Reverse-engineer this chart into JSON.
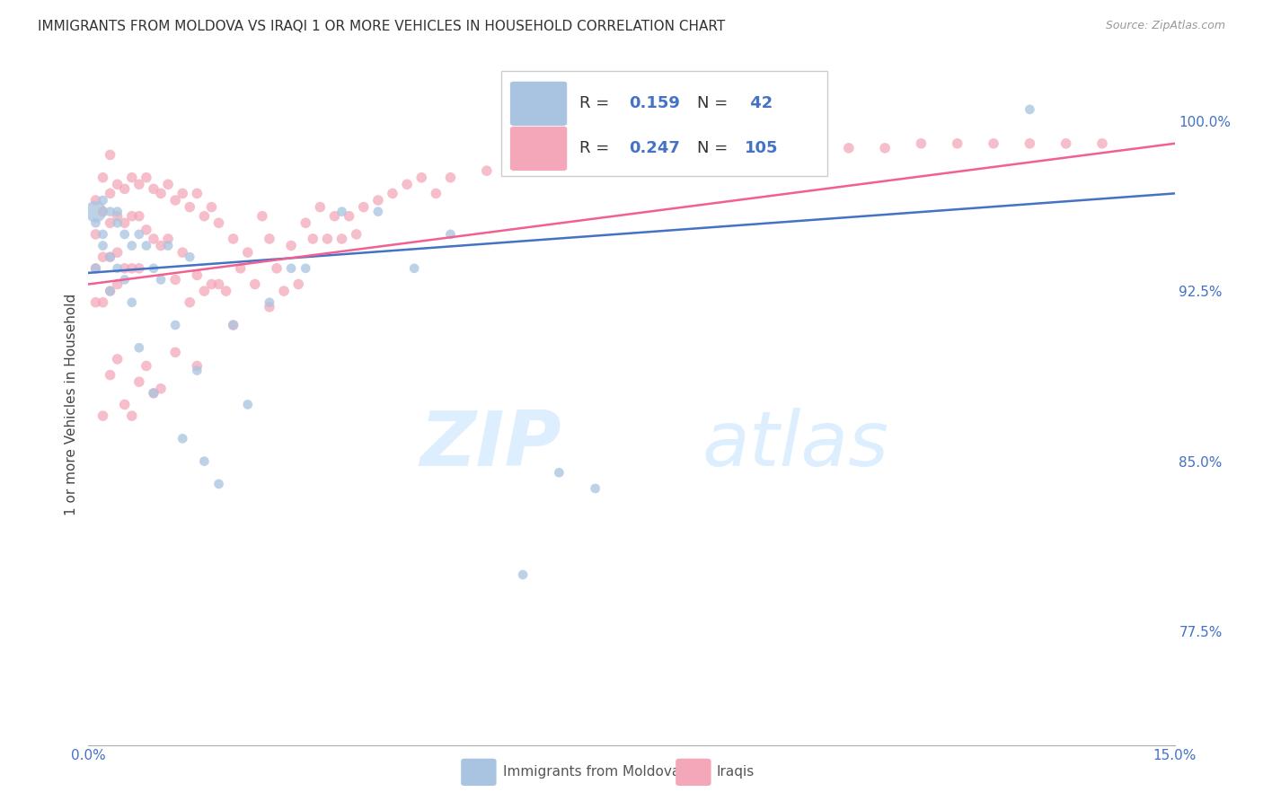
{
  "title": "IMMIGRANTS FROM MOLDOVA VS IRAQI 1 OR MORE VEHICLES IN HOUSEHOLD CORRELATION CHART",
  "source": "Source: ZipAtlas.com",
  "ylabel": "1 or more Vehicles in Household",
  "xlim": [
    0.0,
    0.15
  ],
  "ylim": [
    0.725,
    1.025
  ],
  "yticks_right": [
    0.775,
    0.85,
    0.925,
    1.0
  ],
  "yticklabels_right": [
    "77.5%",
    "85.0%",
    "92.5%",
    "100.0%"
  ],
  "moldova_color": "#a8c4e0",
  "iraqi_color": "#f4a7b9",
  "moldova_line_color": "#4472c4",
  "iraqi_line_color": "#f06090",
  "R_moldova": 0.159,
  "N_moldova": 42,
  "R_iraqi": 0.247,
  "N_iraqi": 105,
  "background_color": "#ffffff",
  "grid_color": "#cccccc",
  "watermark_color": "#ddeeff",
  "moldova_x": [
    0.001,
    0.001,
    0.002,
    0.002,
    0.003,
    0.003,
    0.003,
    0.004,
    0.004,
    0.005,
    0.005,
    0.006,
    0.006,
    0.007,
    0.007,
    0.008,
    0.009,
    0.009,
    0.01,
    0.011,
    0.012,
    0.013,
    0.014,
    0.015,
    0.016,
    0.018,
    0.02,
    0.022,
    0.025,
    0.028,
    0.03,
    0.035,
    0.04,
    0.045,
    0.05,
    0.06,
    0.065,
    0.07,
    0.13,
    0.001,
    0.002,
    0.004
  ],
  "moldova_y": [
    0.935,
    0.955,
    0.965,
    0.945,
    0.96,
    0.94,
    0.925,
    0.955,
    0.935,
    0.95,
    0.93,
    0.945,
    0.92,
    0.95,
    0.9,
    0.945,
    0.935,
    0.88,
    0.93,
    0.945,
    0.91,
    0.86,
    0.94,
    0.89,
    0.85,
    0.84,
    0.91,
    0.875,
    0.92,
    0.935,
    0.935,
    0.96,
    0.96,
    0.935,
    0.95,
    0.8,
    0.845,
    0.838,
    1.005,
    0.96,
    0.95,
    0.96
  ],
  "moldova_sizes": [
    60,
    60,
    60,
    60,
    60,
    60,
    60,
    60,
    60,
    60,
    60,
    60,
    60,
    60,
    60,
    60,
    60,
    60,
    60,
    60,
    60,
    60,
    60,
    60,
    60,
    60,
    60,
    60,
    60,
    60,
    60,
    60,
    60,
    60,
    60,
    60,
    60,
    60,
    60,
    300,
    60,
    60
  ],
  "iraqi_x": [
    0.001,
    0.001,
    0.001,
    0.001,
    0.002,
    0.002,
    0.002,
    0.002,
    0.003,
    0.003,
    0.003,
    0.003,
    0.003,
    0.004,
    0.004,
    0.004,
    0.004,
    0.005,
    0.005,
    0.005,
    0.006,
    0.006,
    0.006,
    0.007,
    0.007,
    0.007,
    0.008,
    0.008,
    0.009,
    0.009,
    0.01,
    0.01,
    0.011,
    0.011,
    0.012,
    0.012,
    0.013,
    0.013,
    0.014,
    0.014,
    0.015,
    0.015,
    0.016,
    0.016,
    0.017,
    0.017,
    0.018,
    0.018,
    0.019,
    0.02,
    0.021,
    0.022,
    0.023,
    0.024,
    0.025,
    0.026,
    0.027,
    0.028,
    0.029,
    0.03,
    0.031,
    0.032,
    0.033,
    0.034,
    0.035,
    0.036,
    0.037,
    0.038,
    0.04,
    0.042,
    0.044,
    0.046,
    0.048,
    0.05,
    0.055,
    0.06,
    0.065,
    0.07,
    0.075,
    0.08,
    0.085,
    0.09,
    0.095,
    0.1,
    0.105,
    0.11,
    0.115,
    0.12,
    0.125,
    0.13,
    0.135,
    0.14,
    0.002,
    0.003,
    0.004,
    0.005,
    0.006,
    0.007,
    0.008,
    0.009,
    0.01,
    0.012,
    0.015,
    0.02,
    0.025
  ],
  "iraqi_y": [
    0.965,
    0.95,
    0.935,
    0.92,
    0.975,
    0.96,
    0.94,
    0.92,
    0.985,
    0.968,
    0.955,
    0.94,
    0.925,
    0.972,
    0.958,
    0.942,
    0.928,
    0.97,
    0.955,
    0.935,
    0.975,
    0.958,
    0.935,
    0.972,
    0.958,
    0.935,
    0.975,
    0.952,
    0.97,
    0.948,
    0.968,
    0.945,
    0.972,
    0.948,
    0.965,
    0.93,
    0.968,
    0.942,
    0.962,
    0.92,
    0.968,
    0.932,
    0.958,
    0.925,
    0.962,
    0.928,
    0.955,
    0.928,
    0.925,
    0.948,
    0.935,
    0.942,
    0.928,
    0.958,
    0.948,
    0.935,
    0.925,
    0.945,
    0.928,
    0.955,
    0.948,
    0.962,
    0.948,
    0.958,
    0.948,
    0.958,
    0.95,
    0.962,
    0.965,
    0.968,
    0.972,
    0.975,
    0.968,
    0.975,
    0.978,
    0.978,
    0.982,
    0.98,
    0.982,
    0.982,
    0.985,
    0.985,
    0.988,
    0.985,
    0.988,
    0.988,
    0.99,
    0.99,
    0.99,
    0.99,
    0.99,
    0.99,
    0.87,
    0.888,
    0.895,
    0.875,
    0.87,
    0.885,
    0.892,
    0.88,
    0.882,
    0.898,
    0.892,
    0.91,
    0.918
  ]
}
